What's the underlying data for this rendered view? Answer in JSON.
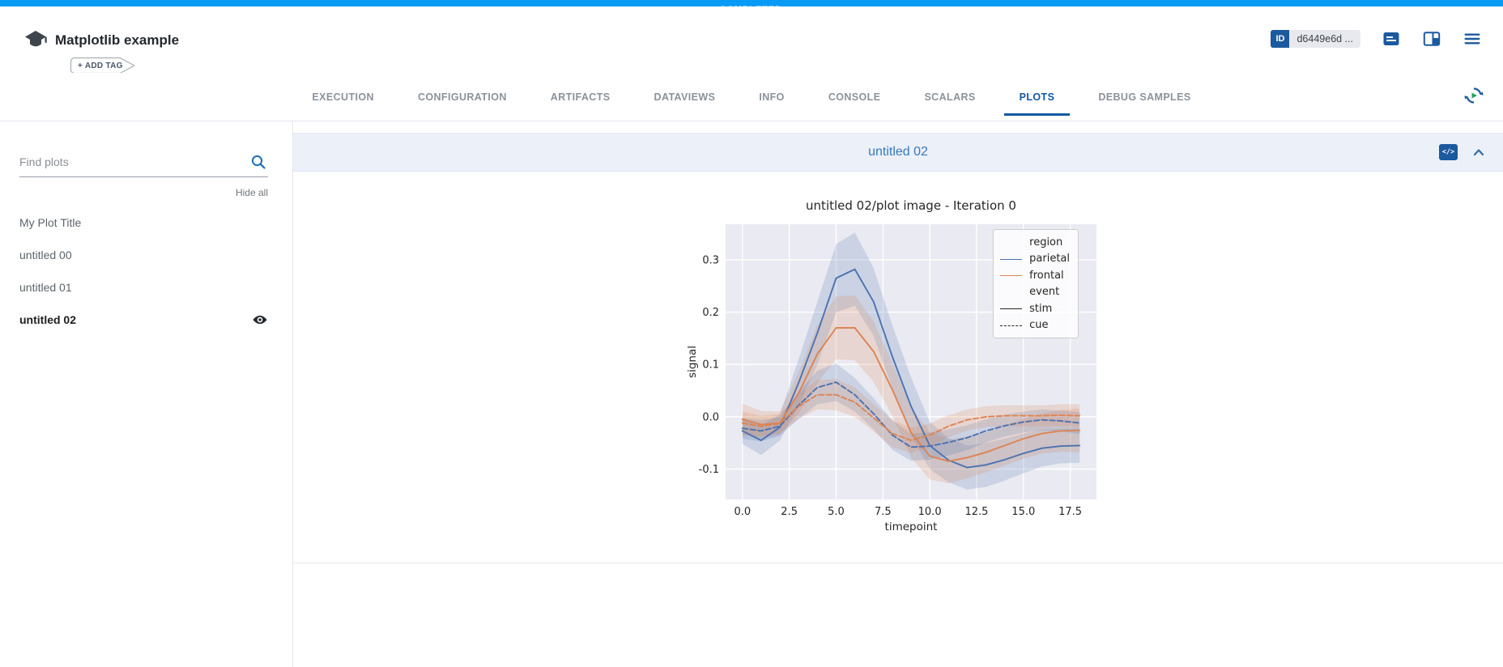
{
  "app": {
    "status_badge": "COMPLETED",
    "experiment_title": "Matplotlib example",
    "add_tag_label": "+ ADD TAG",
    "id_label": "ID",
    "id_value": "d6449e6d ...",
    "colors": {
      "accent_blue": "#089bf5",
      "brand_blue": "#1b5a9e",
      "tab_active_blue": "#1259a4",
      "panel_title_blue": "#3779b8",
      "panel_header_bg": "#ecf0f9"
    }
  },
  "tabs": {
    "items": [
      "EXECUTION",
      "CONFIGURATION",
      "ARTIFACTS",
      "DATAVIEWS",
      "INFO",
      "CONSOLE",
      "SCALARS",
      "PLOTS",
      "DEBUG SAMPLES"
    ],
    "active": "PLOTS"
  },
  "sidebar": {
    "search_placeholder": "Find plots",
    "hide_all_label": "Hide all",
    "items": [
      {
        "label": "My Plot Title",
        "selected": false
      },
      {
        "label": "untitled 00",
        "selected": false
      },
      {
        "label": "untitled 01",
        "selected": false
      },
      {
        "label": "untitled 02",
        "selected": true
      }
    ]
  },
  "plot_panel": {
    "title": "untitled 02"
  },
  "chart_data": {
    "type": "line",
    "title": "untitled 02/plot image - Iteration 0",
    "xlabel": "timepoint",
    "ylabel": "signal",
    "xlim": [
      -0.9,
      18.9
    ],
    "ylim": [
      -0.158,
      0.368
    ],
    "xticks": [
      0.0,
      2.5,
      5.0,
      7.5,
      10.0,
      12.5,
      15.0,
      17.5
    ],
    "yticks": [
      -0.1,
      0.0,
      0.1,
      0.2,
      0.3
    ],
    "grid": true,
    "plot_bg": "#eaeaf2",
    "grid_color": "#ffffff",
    "x": [
      0,
      1,
      2,
      3,
      4,
      5,
      6,
      7,
      8,
      9,
      10,
      11,
      12,
      13,
      14,
      15,
      16,
      17,
      18
    ],
    "series": [
      {
        "name": "parietal-stim",
        "color": "#4c72b0",
        "dash": false,
        "values": [
          -0.027,
          -0.045,
          -0.02,
          0.065,
          0.16,
          0.265,
          0.282,
          0.22,
          0.115,
          0.02,
          -0.055,
          -0.083,
          -0.097,
          -0.092,
          -0.082,
          -0.07,
          -0.06,
          -0.056,
          -0.055
        ],
        "ci": [
          0.025,
          0.028,
          0.025,
          0.045,
          0.06,
          0.065,
          0.07,
          0.065,
          0.06,
          0.055,
          0.045,
          0.042,
          0.042,
          0.042,
          0.04,
          0.038,
          0.035,
          0.033,
          0.033
        ]
      },
      {
        "name": "frontal-stim",
        "color": "#dd8452",
        "dash": false,
        "values": [
          -0.005,
          -0.015,
          -0.012,
          0.045,
          0.12,
          0.17,
          0.17,
          0.125,
          0.052,
          -0.03,
          -0.075,
          -0.085,
          -0.078,
          -0.068,
          -0.055,
          -0.042,
          -0.032,
          -0.027,
          -0.026
        ],
        "ci": [
          0.03,
          0.026,
          0.022,
          0.04,
          0.055,
          0.06,
          0.062,
          0.058,
          0.05,
          0.048,
          0.045,
          0.042,
          0.04,
          0.038,
          0.038,
          0.038,
          0.038,
          0.04,
          0.042
        ]
      },
      {
        "name": "parietal-cue",
        "color": "#4c72b0",
        "dash": true,
        "values": [
          -0.022,
          -0.027,
          -0.018,
          0.022,
          0.056,
          0.066,
          0.042,
          0.006,
          -0.035,
          -0.058,
          -0.056,
          -0.049,
          -0.04,
          -0.027,
          -0.017,
          -0.01,
          -0.006,
          -0.008,
          -0.012
        ],
        "ci": [
          0.02,
          0.02,
          0.018,
          0.026,
          0.032,
          0.036,
          0.032,
          0.03,
          0.028,
          0.026,
          0.026,
          0.025,
          0.024,
          0.022,
          0.021,
          0.02,
          0.02,
          0.02,
          0.021
        ]
      },
      {
        "name": "frontal-cue",
        "color": "#dd8452",
        "dash": true,
        "values": [
          -0.012,
          -0.018,
          -0.013,
          0.02,
          0.042,
          0.042,
          0.028,
          -0.002,
          -0.032,
          -0.045,
          -0.035,
          -0.018,
          -0.006,
          0.0,
          0.002,
          0.002,
          0.002,
          0.003,
          0.002
        ],
        "ci": [
          0.022,
          0.02,
          0.018,
          0.024,
          0.028,
          0.03,
          0.028,
          0.026,
          0.026,
          0.024,
          0.022,
          0.021,
          0.02,
          0.02,
          0.02,
          0.02,
          0.02,
          0.021,
          0.022
        ]
      }
    ],
    "legend": {
      "position": "upper right",
      "entries": [
        {
          "label": "region",
          "type": "header"
        },
        {
          "label": "parietal",
          "type": "line",
          "color": "#4c72b0",
          "dash": false
        },
        {
          "label": "frontal",
          "type": "line",
          "color": "#dd8452",
          "dash": false
        },
        {
          "label": "event",
          "type": "header"
        },
        {
          "label": "stim",
          "type": "line",
          "color": "#262626",
          "dash": false
        },
        {
          "label": "cue",
          "type": "line",
          "color": "#262626",
          "dash": true
        }
      ]
    }
  }
}
